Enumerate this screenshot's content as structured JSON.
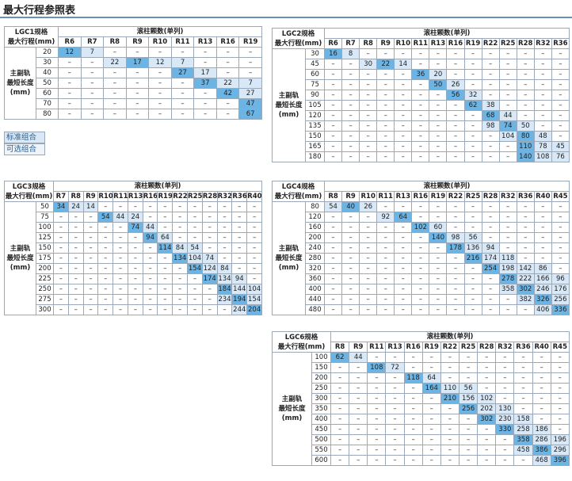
{
  "title": "最大行程参照表",
  "legend": {
    "standard": "标准组合",
    "optional": "可选组合"
  },
  "tables": [
    {
      "spec": "LGC1规格",
      "stroke_header": "最大行程(mm)",
      "group_header": "滚柱颗数(单列)",
      "row_label": [
        "主副轨",
        "最短长度",
        "(mm)"
      ],
      "columns": [
        "R6",
        "R7",
        "R8",
        "R9",
        "R10",
        "R11",
        "R13",
        "R16",
        "R19"
      ],
      "rows": [
        {
          "length": "20",
          "cells": [
            "12",
            "7",
            "–",
            "–",
            "–",
            "–",
            "–",
            "–",
            "–"
          ],
          "standard_column": 0
        },
        {
          "length": "30",
          "cells": [
            "–",
            "–",
            "22",
            "17",
            "12",
            "7",
            "–",
            "–",
            "–"
          ],
          "standard_column": 3
        },
        {
          "length": "40",
          "cells": [
            "–",
            "–",
            "–",
            "–",
            "–",
            "27",
            "17",
            "–",
            "–"
          ],
          "standard_column": 5
        },
        {
          "length": "50",
          "cells": [
            "–",
            "–",
            "–",
            "–",
            "–",
            "–",
            "37",
            "22",
            "7"
          ],
          "standard_column": 6
        },
        {
          "length": "60",
          "cells": [
            "–",
            "–",
            "–",
            "–",
            "–",
            "–",
            "–",
            "42",
            "27"
          ],
          "standard_column": 7
        },
        {
          "length": "70",
          "cells": [
            "–",
            "–",
            "–",
            "–",
            "–",
            "–",
            "–",
            "–",
            "47"
          ],
          "standard_column": 8
        },
        {
          "length": "80",
          "cells": [
            "–",
            "–",
            "–",
            "–",
            "–",
            "–",
            "–",
            "–",
            "67"
          ],
          "standard_column": 8
        }
      ]
    },
    {
      "spec": "LGC2规格",
      "stroke_header": "最大行程(mm)",
      "group_header": "滚柱颗数(单列)",
      "row_label": [
        "主副轨",
        "最短长度",
        "(mm)"
      ],
      "columns": [
        "R6",
        "R7",
        "R8",
        "R9",
        "R10",
        "R11",
        "R13",
        "R16",
        "R19",
        "R22",
        "R25",
        "R28",
        "R32",
        "R36"
      ],
      "rows": [
        {
          "length": "30",
          "cells": [
            "16",
            "8",
            "–",
            "–",
            "–",
            "–",
            "–",
            "–",
            "–",
            "–",
            "–",
            "–",
            "–",
            "–"
          ],
          "standard_column": 0
        },
        {
          "length": "45",
          "cells": [
            "–",
            "–",
            "30",
            "22",
            "14",
            "–",
            "–",
            "–",
            "–",
            "–",
            "–",
            "–",
            "–",
            "–"
          ],
          "standard_column": 3
        },
        {
          "length": "60",
          "cells": [
            "–",
            "–",
            "–",
            "–",
            "–",
            "36",
            "20",
            "–",
            "–",
            "–",
            "–",
            "–",
            "–",
            "–"
          ],
          "standard_column": 5
        },
        {
          "length": "75",
          "cells": [
            "–",
            "–",
            "–",
            "–",
            "–",
            "–",
            "50",
            "26",
            "–",
            "–",
            "–",
            "–",
            "–",
            "–"
          ],
          "standard_column": 6
        },
        {
          "length": "90",
          "cells": [
            "–",
            "–",
            "–",
            "–",
            "–",
            "–",
            "–",
            "56",
            "32",
            "–",
            "–",
            "–",
            "–",
            "–"
          ],
          "standard_column": 7
        },
        {
          "length": "105",
          "cells": [
            "–",
            "–",
            "–",
            "–",
            "–",
            "–",
            "–",
            "–",
            "62",
            "38",
            "–",
            "–",
            "–",
            "–"
          ],
          "standard_column": 8
        },
        {
          "length": "120",
          "cells": [
            "–",
            "–",
            "–",
            "–",
            "–",
            "–",
            "–",
            "–",
            "–",
            "68",
            "44",
            "–",
            "–",
            "–"
          ],
          "standard_column": 9
        },
        {
          "length": "135",
          "cells": [
            "–",
            "–",
            "–",
            "–",
            "–",
            "–",
            "–",
            "–",
            "–",
            "98",
            "74",
            "50",
            "–",
            "–"
          ],
          "standard_column": 10
        },
        {
          "length": "150",
          "cells": [
            "–",
            "–",
            "–",
            "–",
            "–",
            "–",
            "–",
            "–",
            "–",
            "–",
            "104",
            "80",
            "48",
            "–"
          ],
          "standard_column": 11
        },
        {
          "length": "165",
          "cells": [
            "–",
            "–",
            "–",
            "–",
            "–",
            "–",
            "–",
            "–",
            "–",
            "–",
            "–",
            "110",
            "78",
            "45"
          ],
          "standard_column": 11
        },
        {
          "length": "180",
          "cells": [
            "–",
            "–",
            "–",
            "–",
            "–",
            "–",
            "–",
            "–",
            "–",
            "–",
            "–",
            "140",
            "108",
            "76"
          ],
          "standard_column": 11
        }
      ]
    },
    {
      "spec": "LGC3规格",
      "stroke_header": "最大行程(mm)",
      "group_header": "滚柱颗数(单列)",
      "row_label": [
        "主副轨",
        "最短长度",
        "(mm)"
      ],
      "columns": [
        "R7",
        "R8",
        "R9",
        "R10",
        "R11",
        "R13",
        "R16",
        "R19",
        "R22",
        "R25",
        "R28",
        "R32",
        "R36",
        "R40"
      ],
      "rows": [
        {
          "length": "50",
          "cells": [
            "34",
            "24",
            "14",
            "–",
            "–",
            "–",
            "–",
            "–",
            "–",
            "–",
            "–",
            "–",
            "–",
            "–"
          ],
          "standard_column": 0
        },
        {
          "length": "75",
          "cells": [
            "–",
            "–",
            "–",
            "54",
            "44",
            "24",
            "–",
            "–",
            "–",
            "–",
            "–",
            "–",
            "–",
            "–"
          ],
          "standard_column": 3
        },
        {
          "length": "100",
          "cells": [
            "–",
            "–",
            "–",
            "–",
            "–",
            "74",
            "44",
            "–",
            "–",
            "–",
            "–",
            "–",
            "–",
            "–"
          ],
          "standard_column": 5
        },
        {
          "length": "125",
          "cells": [
            "–",
            "–",
            "–",
            "–",
            "–",
            "–",
            "94",
            "64",
            "–",
            "–",
            "–",
            "–",
            "–",
            "–"
          ],
          "standard_column": 6
        },
        {
          "length": "150",
          "cells": [
            "–",
            "–",
            "–",
            "–",
            "–",
            "–",
            "–",
            "114",
            "84",
            "54",
            "–",
            "–",
            "–",
            "–"
          ],
          "standard_column": 7
        },
        {
          "length": "175",
          "cells": [
            "–",
            "–",
            "–",
            "–",
            "–",
            "–",
            "–",
            "–",
            "134",
            "104",
            "74",
            "–",
            "–",
            "–"
          ],
          "standard_column": 8
        },
        {
          "length": "200",
          "cells": [
            "–",
            "–",
            "–",
            "–",
            "–",
            "–",
            "–",
            "–",
            "–",
            "154",
            "124",
            "84",
            "–",
            "–"
          ],
          "standard_column": 9
        },
        {
          "length": "225",
          "cells": [
            "–",
            "–",
            "–",
            "–",
            "–",
            "–",
            "–",
            "–",
            "–",
            "–",
            "174",
            "134",
            "94",
            "–"
          ],
          "standard_column": 10
        },
        {
          "length": "250",
          "cells": [
            "–",
            "–",
            "–",
            "–",
            "–",
            "–",
            "–",
            "–",
            "–",
            "–",
            "–",
            "184",
            "144",
            "104"
          ],
          "standard_column": 11
        },
        {
          "length": "275",
          "cells": [
            "–",
            "–",
            "–",
            "–",
            "–",
            "–",
            "–",
            "–",
            "–",
            "–",
            "–",
            "234",
            "194",
            "154"
          ],
          "standard_column": 12
        },
        {
          "length": "300",
          "cells": [
            "–",
            "–",
            "–",
            "–",
            "–",
            "–",
            "–",
            "–",
            "–",
            "–",
            "–",
            "–",
            "244",
            "204"
          ],
          "standard_column": 13
        }
      ]
    },
    {
      "spec": "LGC4规格",
      "stroke_header": "最大行程(mm)",
      "group_header": "滚柱颗数(单列)",
      "row_label": [
        "主副轨",
        "最短长度",
        "(mm)"
      ],
      "columns": [
        "R8",
        "R9",
        "R10",
        "R11",
        "R13",
        "R16",
        "R19",
        "R22",
        "R25",
        "R28",
        "R32",
        "R36",
        "R40",
        "R45"
      ],
      "rows": [
        {
          "length": "80",
          "cells": [
            "54",
            "40",
            "26",
            "–",
            "–",
            "–",
            "–",
            "–",
            "–",
            "–",
            "–",
            "–",
            "–",
            "–"
          ],
          "standard_column": 1
        },
        {
          "length": "120",
          "cells": [
            "–",
            "–",
            "–",
            "92",
            "64",
            "–",
            "–",
            "–",
            "–",
            "–",
            "–",
            "–",
            "–",
            "–"
          ],
          "standard_column": 4
        },
        {
          "length": "160",
          "cells": [
            "–",
            "–",
            "–",
            "–",
            "–",
            "102",
            "60",
            "–",
            "–",
            "–",
            "–",
            "–",
            "–",
            "–"
          ],
          "standard_column": 5
        },
        {
          "length": "200",
          "cells": [
            "–",
            "–",
            "–",
            "–",
            "–",
            "–",
            "140",
            "98",
            "56",
            "–",
            "–",
            "–",
            "–",
            "–"
          ],
          "standard_column": 6
        },
        {
          "length": "240",
          "cells": [
            "–",
            "–",
            "–",
            "–",
            "–",
            "–",
            "–",
            "178",
            "136",
            "94",
            "–",
            "–",
            "–",
            "–"
          ],
          "standard_column": 7
        },
        {
          "length": "280",
          "cells": [
            "–",
            "–",
            "–",
            "–",
            "–",
            "–",
            "–",
            "–",
            "216",
            "174",
            "118",
            "–",
            "–",
            "–"
          ],
          "standard_column": 8
        },
        {
          "length": "320",
          "cells": [
            "–",
            "–",
            "–",
            "–",
            "–",
            "–",
            "–",
            "–",
            "–",
            "254",
            "198",
            "142",
            "86",
            "–"
          ],
          "standard_column": 9
        },
        {
          "length": "360",
          "cells": [
            "–",
            "–",
            "–",
            "–",
            "–",
            "–",
            "–",
            "–",
            "–",
            "–",
            "278",
            "222",
            "166",
            "96"
          ],
          "standard_column": 10
        },
        {
          "length": "400",
          "cells": [
            "–",
            "–",
            "–",
            "–",
            "–",
            "–",
            "–",
            "–",
            "–",
            "–",
            "358",
            "302",
            "246",
            "176"
          ],
          "standard_column": 11
        },
        {
          "length": "440",
          "cells": [
            "–",
            "–",
            "–",
            "–",
            "–",
            "–",
            "–",
            "–",
            "–",
            "–",
            "–",
            "382",
            "326",
            "256"
          ],
          "standard_column": 12
        },
        {
          "length": "480",
          "cells": [
            "–",
            "–",
            "–",
            "–",
            "–",
            "–",
            "–",
            "–",
            "–",
            "–",
            "–",
            "–",
            "406",
            "336"
          ],
          "standard_column": 13
        }
      ]
    },
    {
      "spec": "LGC6规格",
      "stroke_header": "最大行程(mm)",
      "group_header": "滚柱颗数(单列)",
      "row_label": [
        "主副轨",
        "最短长度",
        "(mm)"
      ],
      "columns": [
        "R8",
        "R9",
        "R11",
        "R13",
        "R16",
        "R19",
        "R22",
        "R25",
        "R28",
        "R32",
        "R36",
        "R40",
        "R45"
      ],
      "rows": [
        {
          "length": "100",
          "cells": [
            "62",
            "44",
            "–",
            "–",
            "–",
            "–",
            "–",
            "–",
            "–",
            "–",
            "–",
            "–",
            "–"
          ],
          "standard_column": 0
        },
        {
          "length": "150",
          "cells": [
            "–",
            "–",
            "108",
            "72",
            "–",
            "–",
            "–",
            "–",
            "–",
            "–",
            "–",
            "–",
            "–"
          ],
          "standard_column": 2
        },
        {
          "length": "200",
          "cells": [
            "–",
            "–",
            "–",
            "–",
            "118",
            "64",
            "–",
            "–",
            "–",
            "–",
            "–",
            "–",
            "–"
          ],
          "standard_column": 4
        },
        {
          "length": "250",
          "cells": [
            "–",
            "–",
            "–",
            "–",
            "–",
            "164",
            "110",
            "56",
            "–",
            "–",
            "–",
            "–",
            "–"
          ],
          "standard_column": 5
        },
        {
          "length": "300",
          "cells": [
            "–",
            "–",
            "–",
            "–",
            "–",
            "–",
            "210",
            "156",
            "102",
            "–",
            "–",
            "–",
            "–"
          ],
          "standard_column": 6
        },
        {
          "length": "350",
          "cells": [
            "–",
            "–",
            "–",
            "–",
            "–",
            "–",
            "–",
            "256",
            "202",
            "130",
            "–",
            "–",
            "–"
          ],
          "standard_column": 7
        },
        {
          "length": "400",
          "cells": [
            "–",
            "–",
            "–",
            "–",
            "–",
            "–",
            "–",
            "–",
            "302",
            "230",
            "158",
            "–",
            "–"
          ],
          "standard_column": 8
        },
        {
          "length": "450",
          "cells": [
            "–",
            "–",
            "–",
            "–",
            "–",
            "–",
            "–",
            "–",
            "–",
            "330",
            "258",
            "186",
            "–"
          ],
          "standard_column": 9
        },
        {
          "length": "500",
          "cells": [
            "–",
            "–",
            "–",
            "–",
            "–",
            "–",
            "–",
            "–",
            "–",
            "–",
            "358",
            "286",
            "196"
          ],
          "standard_column": 10
        },
        {
          "length": "550",
          "cells": [
            "–",
            "–",
            "–",
            "–",
            "–",
            "–",
            "–",
            "–",
            "–",
            "–",
            "458",
            "386",
            "296"
          ],
          "standard_column": 11
        },
        {
          "length": "600",
          "cells": [
            "–",
            "–",
            "–",
            "–",
            "–",
            "–",
            "–",
            "–",
            "–",
            "–",
            "–",
            "468",
            "396"
          ],
          "standard_column": 12
        }
      ]
    }
  ]
}
